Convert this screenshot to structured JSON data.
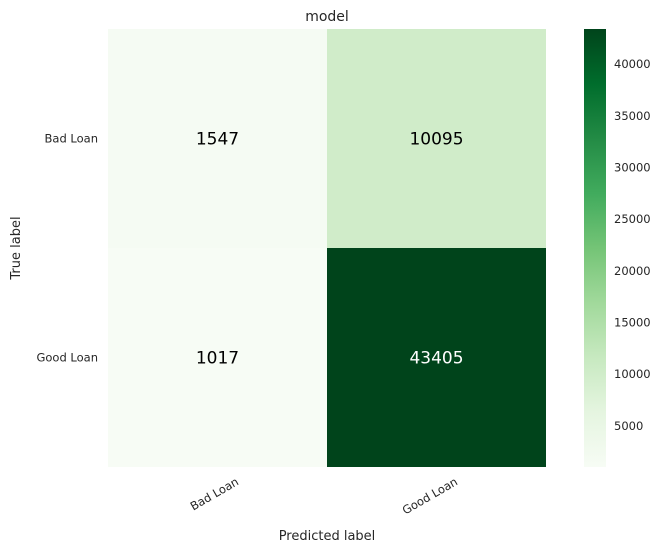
{
  "chart_data": {
    "type": "heatmap",
    "title": "model",
    "xlabel": "Predicted label",
    "ylabel": "True label",
    "x_categories": [
      "Bad Loan",
      "Good Loan"
    ],
    "y_categories": [
      "Bad Loan",
      "Good Loan"
    ],
    "values": [
      [
        1547,
        10095
      ],
      [
        1017,
        43405
      ]
    ],
    "colormap": "Greens",
    "colorbar": {
      "min": 1017,
      "max": 43405,
      "ticks": [
        5000,
        10000,
        15000,
        20000,
        25000,
        30000,
        35000,
        40000
      ]
    },
    "grid": false
  },
  "colors": {
    "cell_light_text": "#000000",
    "cell_dark_text": "#ffffff"
  }
}
